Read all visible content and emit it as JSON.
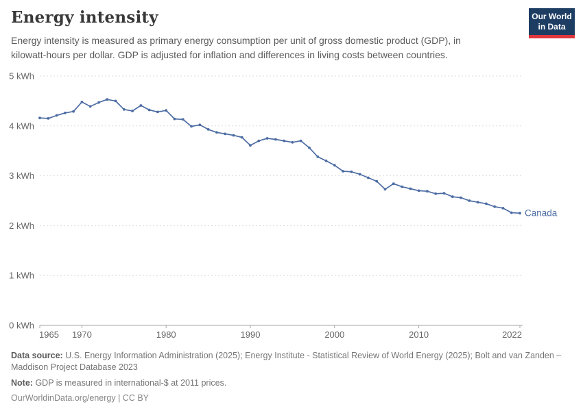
{
  "page": {
    "background": "#ffffff"
  },
  "header": {
    "title": "Energy intensity",
    "subtitle": "Energy intensity is measured as primary energy consumption per unit of gross domestic product (GDP), in kilowatt-hours per dollar. GDP is adjusted for inflation and differences in living costs between countries.",
    "logo": {
      "line1": "Our World",
      "line2": "in Data",
      "bg_color": "#1d3d63",
      "bar_color": "#e0373f"
    }
  },
  "chart_data": {
    "type": "line",
    "title": "Energy intensity",
    "unit": "kWh per dollar",
    "xlim": [
      1965,
      2022
    ],
    "ylim": [
      0,
      5
    ],
    "x_ticks": [
      1965,
      1970,
      1980,
      1990,
      2000,
      2010,
      2022
    ],
    "y_ticks": [
      0,
      1,
      2,
      3,
      4,
      5
    ],
    "y_tick_suffix": " kWh",
    "grid": "horizontal dashed gridlines",
    "legend_position": "end-of-line label",
    "years": [
      1965,
      1966,
      1967,
      1968,
      1969,
      1970,
      1971,
      1972,
      1973,
      1974,
      1975,
      1976,
      1977,
      1978,
      1979,
      1980,
      1981,
      1982,
      1983,
      1984,
      1985,
      1986,
      1987,
      1988,
      1989,
      1990,
      1991,
      1992,
      1993,
      1994,
      1995,
      1996,
      1997,
      1998,
      1999,
      2000,
      2001,
      2002,
      2003,
      2004,
      2005,
      2006,
      2007,
      2008,
      2009,
      2010,
      2011,
      2012,
      2013,
      2014,
      2015,
      2016,
      2017,
      2018,
      2019,
      2020,
      2021,
      2022
    ],
    "series": [
      {
        "name": "Canada",
        "color": "#4c6ca3",
        "values": [
          4.16,
          4.15,
          4.21,
          4.26,
          4.29,
          4.48,
          4.39,
          4.47,
          4.53,
          4.5,
          4.33,
          4.3,
          4.41,
          4.32,
          4.28,
          4.31,
          4.14,
          4.13,
          3.99,
          4.02,
          3.93,
          3.87,
          3.84,
          3.81,
          3.77,
          3.61,
          3.7,
          3.75,
          3.73,
          3.7,
          3.67,
          3.7,
          3.56,
          3.38,
          3.3,
          3.21,
          3.09,
          3.08,
          3.03,
          2.96,
          2.89,
          2.73,
          2.84,
          2.78,
          2.74,
          2.7,
          2.69,
          2.64,
          2.65,
          2.58,
          2.56,
          2.5,
          2.47,
          2.44,
          2.38,
          2.35,
          2.26,
          2.25
        ]
      }
    ],
    "colors": {
      "gridline": "#dddddd",
      "axis": "#a6a6a6",
      "tick_label": "#666666"
    }
  },
  "footer": {
    "datasource_label": "Data source:",
    "datasource_text": "U.S. Energy Information Administration (2025); Energy Institute - Statistical Review of World Energy (2025); Bolt and van Zanden – Maddison Project Database 2023",
    "note_label": "Note:",
    "note_text": "GDP is measured in international-$ at 2011 prices.",
    "link": "OurWorldinData.org/energy | CC BY"
  }
}
